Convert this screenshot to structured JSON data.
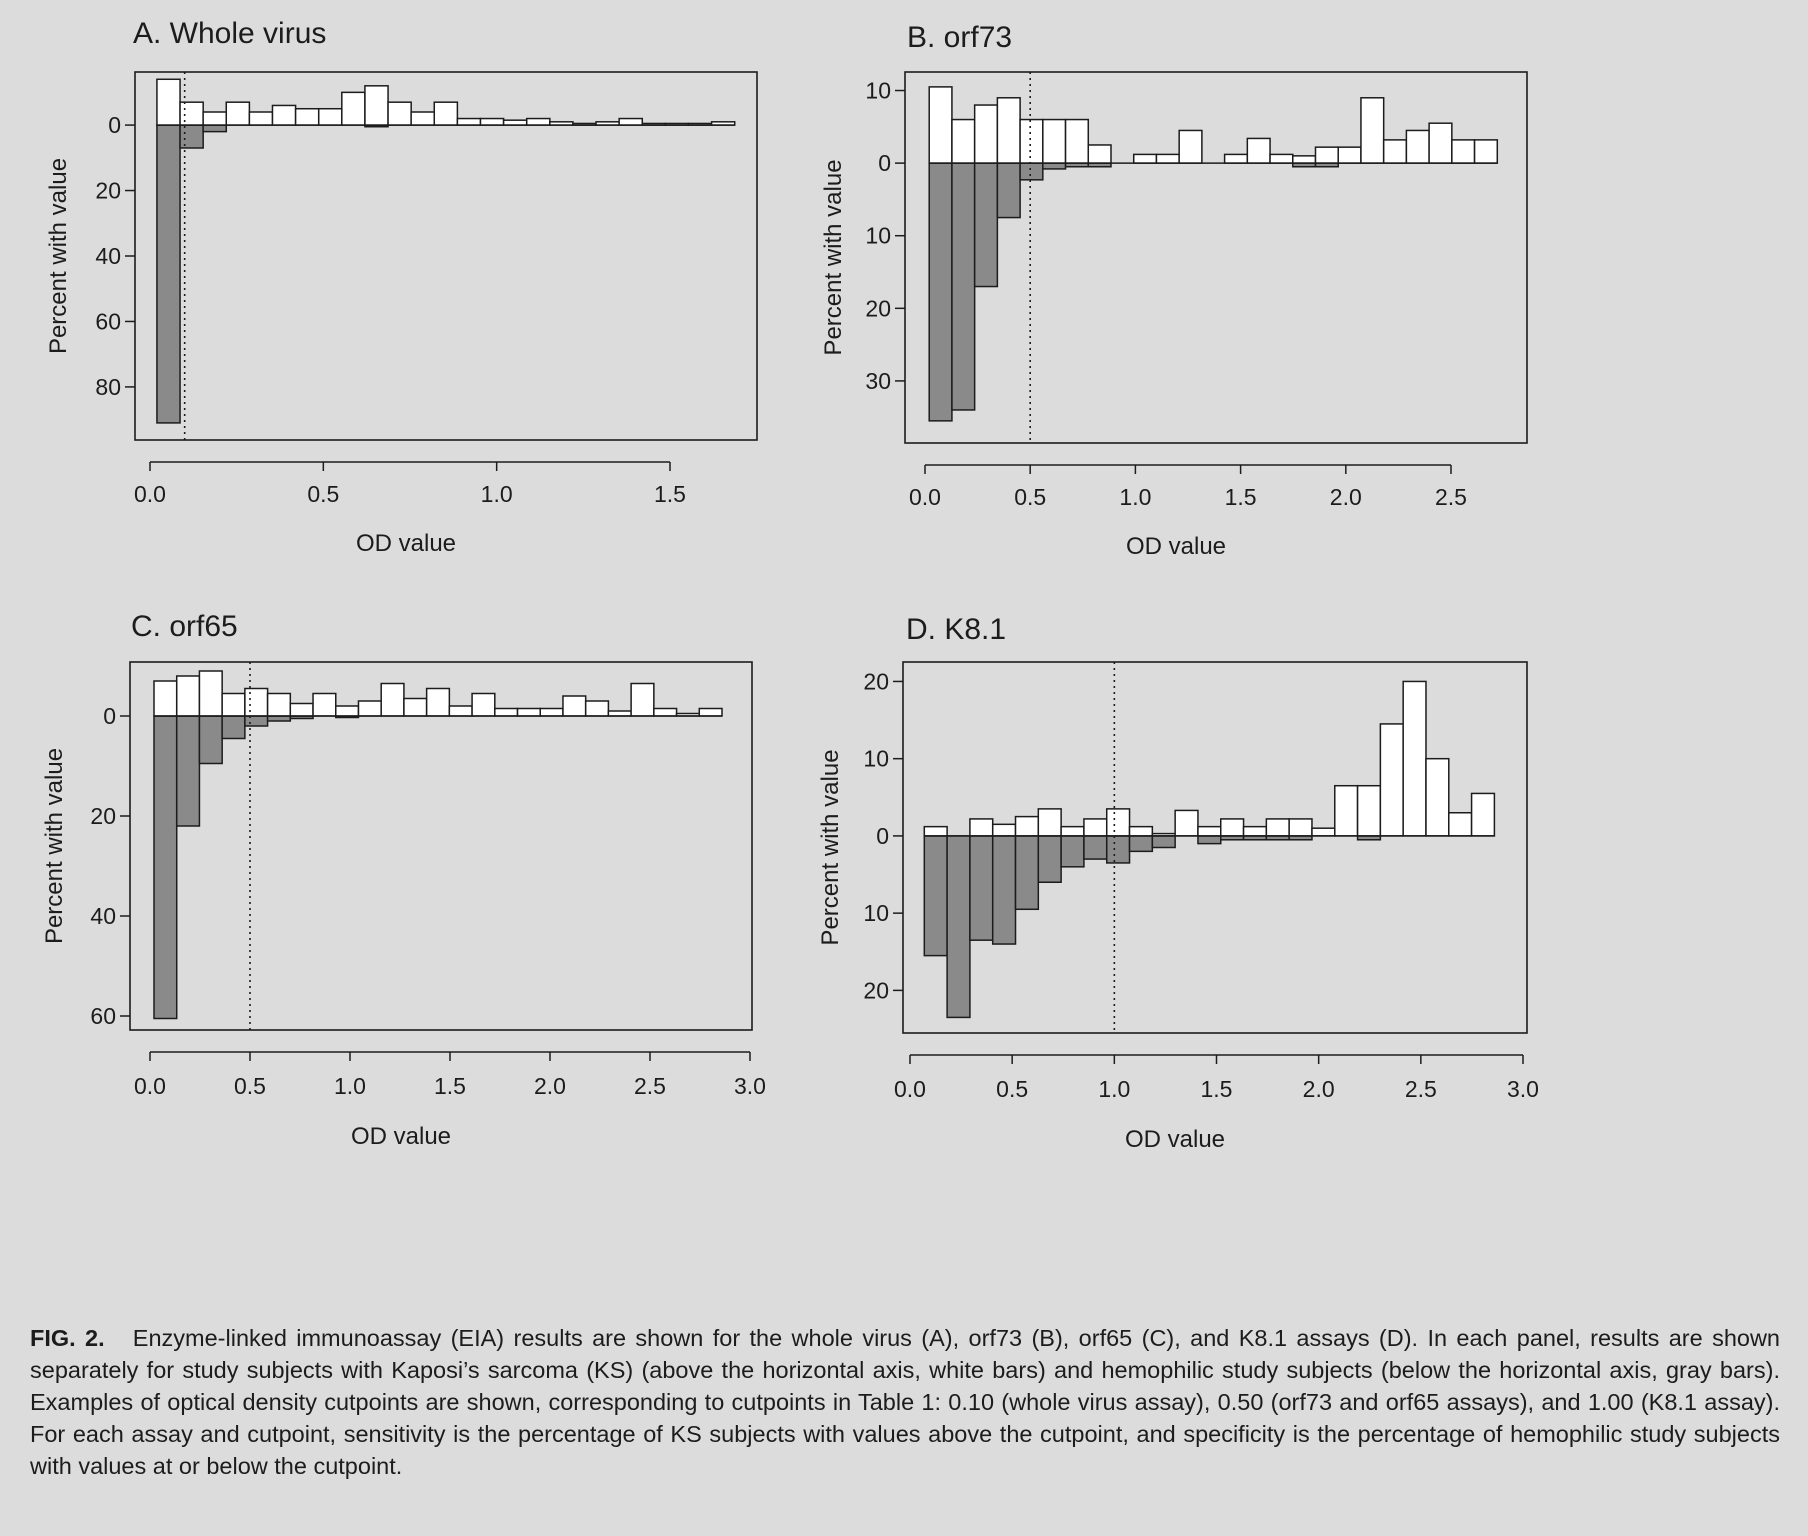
{
  "panels": [
    {
      "id": "A",
      "title": "A.  Whole virus",
      "xlabel": "OD value",
      "ylabel": "Percent with value",
      "cutpoint": 0.1,
      "chart_data": {
        "type": "bar",
        "xlim": [
          0.0,
          1.75
        ],
        "xticks": [
          0.0,
          0.5,
          1.0,
          1.5
        ],
        "xtick_labels": [
          "0.0",
          "0.5",
          "1.0",
          "1.5"
        ],
        "ylim_up": 15,
        "ylim_down": 95,
        "yticks_up": [
          0
        ],
        "yticks_down": [
          20,
          40,
          60,
          80
        ],
        "bin_width": 0.0667,
        "bin_starts": [
          0.02,
          0.0867,
          0.1533,
          0.22,
          0.2867,
          0.3533,
          0.42,
          0.4867,
          0.5533,
          0.62,
          0.6867,
          0.7533,
          0.82,
          0.8867,
          0.9533,
          1.02,
          1.0867,
          1.1533,
          1.22,
          1.2867,
          1.3533,
          1.42,
          1.4867,
          1.5533,
          1.62
        ],
        "series": [
          {
            "name": "KS (white bars)",
            "direction": "up",
            "values": [
              14,
              7,
              4,
              7,
              4,
              6,
              5,
              5,
              10,
              12,
              7,
              4,
              7,
              2,
              2,
              1.5,
              2,
              1,
              0.5,
              1,
              2,
              0.5,
              0.5,
              0.5,
              1
            ]
          },
          {
            "name": "hemophilic (gray bars)",
            "direction": "down",
            "values": [
              91,
              7,
              2,
              0,
              0,
              0,
              0,
              0,
              0,
              0.5,
              0,
              0,
              0,
              0,
              0,
              0,
              0,
              0,
              0,
              0,
              0,
              0,
              0,
              0,
              0
            ]
          }
        ]
      }
    },
    {
      "id": "B",
      "title": "B.  orf73",
      "xlabel": "OD value",
      "ylabel": "Percent with value",
      "cutpoint": 0.5,
      "chart_data": {
        "type": "bar",
        "xlim": [
          0.0,
          2.8
        ],
        "xticks": [
          0.0,
          0.5,
          1.0,
          1.5,
          2.0,
          2.5
        ],
        "xtick_labels": [
          "0.0",
          "0.5",
          "1.0",
          "1.5",
          "2.0",
          "2.5"
        ],
        "ylim_up": 12,
        "ylim_down": 38,
        "yticks_up": [
          10,
          0
        ],
        "yticks_down": [
          10,
          20,
          30
        ],
        "bin_width": 0.108,
        "bin_starts": [
          0.02,
          0.128,
          0.236,
          0.344,
          0.452,
          0.56,
          0.668,
          0.776,
          0.884,
          0.992,
          1.1,
          1.208,
          1.316,
          1.424,
          1.532,
          1.64,
          1.748,
          1.856,
          1.964,
          2.072,
          2.18,
          2.288,
          2.396,
          2.504,
          2.612
        ],
        "series": [
          {
            "name": "KS (white bars)",
            "direction": "up",
            "values": [
              10.5,
              6,
              8,
              9,
              6,
              6,
              6,
              2.5,
              0,
              1.2,
              1.2,
              4.5,
              0,
              1.2,
              3.4,
              1.2,
              1,
              2.2,
              2.2,
              9,
              3.2,
              4.5,
              5.5,
              3.2,
              3.2
            ]
          },
          {
            "name": "hemophilic (gray bars)",
            "direction": "down",
            "values": [
              35.5,
              34,
              17,
              7.5,
              2.3,
              0.8,
              0.5,
              0.5,
              0,
              0,
              0,
              0,
              0,
              0,
              0,
              0,
              0.5,
              0.5,
              0,
              0,
              0,
              0,
              0,
              0,
              0
            ]
          }
        ]
      }
    },
    {
      "id": "C",
      "title": "C.  orf65",
      "xlabel": "OD value",
      "ylabel": "Percent with value",
      "cutpoint": 0.5,
      "chart_data": {
        "type": "bar",
        "xlim": [
          0.0,
          3.0
        ],
        "xticks": [
          0.0,
          0.5,
          1.0,
          1.5,
          2.0,
          2.5,
          3.0
        ],
        "xtick_labels": [
          "0.0",
          "0.5",
          "1.0",
          "1.5",
          "2.0",
          "2.5",
          "3.0"
        ],
        "ylim_up": 10,
        "ylim_down": 62,
        "yticks_up": [
          0
        ],
        "yticks_down": [
          20,
          40,
          60
        ],
        "bin_width": 0.1136,
        "bin_starts": [
          0.02,
          0.1336,
          0.2472,
          0.3608,
          0.4744,
          0.588,
          0.7016,
          0.8152,
          0.9288,
          1.0424,
          1.156,
          1.2696,
          1.3832,
          1.4968,
          1.6104,
          1.724,
          1.8376,
          1.9512,
          2.0648,
          2.1784,
          2.292,
          2.4056,
          2.5192,
          2.6328,
          2.7464
        ],
        "series": [
          {
            "name": "KS (white bars)",
            "direction": "up",
            "values": [
              7,
              8,
              9,
              4.5,
              5.5,
              4.5,
              2.5,
              4.5,
              2,
              3,
              6.5,
              3.5,
              5.5,
              2,
              4.5,
              1.5,
              1.5,
              1.5,
              4,
              3,
              1,
              6.5,
              1.5,
              0.5,
              1.5
            ]
          },
          {
            "name": "hemophilic (gray bars)",
            "direction": "down",
            "values": [
              60.5,
              22,
              9.5,
              4.5,
              2,
              1,
              0.5,
              0,
              0.3,
              0,
              0,
              0,
              0,
              0,
              0,
              0,
              0,
              0,
              0,
              0,
              0,
              0,
              0,
              0,
              0
            ]
          }
        ]
      }
    },
    {
      "id": "D",
      "title": "D.  K8.1",
      "xlabel": "OD value",
      "ylabel": "Percent with value",
      "cutpoint": 1.0,
      "chart_data": {
        "type": "bar",
        "xlim": [
          0.0,
          3.0
        ],
        "xticks": [
          0.0,
          0.5,
          1.0,
          1.5,
          2.0,
          2.5,
          3.0
        ],
        "xtick_labels": [
          "0.0",
          "0.5",
          "1.0",
          "1.5",
          "2.0",
          "2.5",
          "3.0"
        ],
        "ylim_up": 22,
        "ylim_down": 25,
        "yticks_up": [
          20,
          10,
          0
        ],
        "yticks_down": [
          10,
          20
        ],
        "bin_width": 0.1116,
        "bin_starts": [
          0.07,
          0.1816,
          0.2932,
          0.4048,
          0.5164,
          0.628,
          0.7396,
          0.8512,
          0.9628,
          1.0744,
          1.186,
          1.2976,
          1.4092,
          1.5208,
          1.6324,
          1.744,
          1.8556,
          1.9672,
          2.0788,
          2.1904,
          2.302,
          2.4136,
          2.5252,
          2.6368,
          2.7484
        ],
        "series": [
          {
            "name": "KS (white bars)",
            "direction": "up",
            "values": [
              1.2,
              0,
              2.2,
              1.5,
              2.5,
              3.5,
              1.2,
              2.2,
              3.5,
              1.2,
              0.3,
              3.3,
              1.2,
              2.2,
              1.2,
              2.2,
              2.2,
              1,
              6.5,
              6.5,
              14.5,
              20,
              10,
              3,
              5.5
            ]
          },
          {
            "name": "hemophilic (gray bars)",
            "direction": "down",
            "values": [
              15.5,
              23.5,
              13.5,
              14,
              9.5,
              6,
              4,
              3,
              3.5,
              2,
              1.5,
              0,
              1,
              0.5,
              0.5,
              0.5,
              0.5,
              0,
              0,
              0.5,
              0,
              0,
              0,
              0,
              0
            ]
          }
        ]
      }
    }
  ],
  "caption": {
    "label": "FIG. 2.",
    "text": "Enzyme-linked immunoassay (EIA) results are shown for the whole virus (A), orf73 (B), orf65 (C), and K8.1 assays (D). In each panel, results are shown separately for study subjects with Kaposi’s sarcoma (KS) (above the horizontal axis, white bars) and hemophilic study subjects (below the horizontal axis, gray bars). Examples of optical density cutpoints are shown, corresponding to cutpoints in Table 1: 0.10 (whole virus assay), 0.50 (orf73 and orf65 assays), and 1.00 (K8.1 assay). For each assay and cutpoint, sensitivity is the percentage of KS subjects with values above the cutpoint, and specificity is the percentage of hemophilic study subjects with values at or below the cutpoint."
  },
  "colors": {
    "background": "#dcdcdc",
    "up_bar_fill": "#ffffff",
    "down_bar_fill": "#8a8a8a",
    "stroke": "#1c1c1c"
  }
}
